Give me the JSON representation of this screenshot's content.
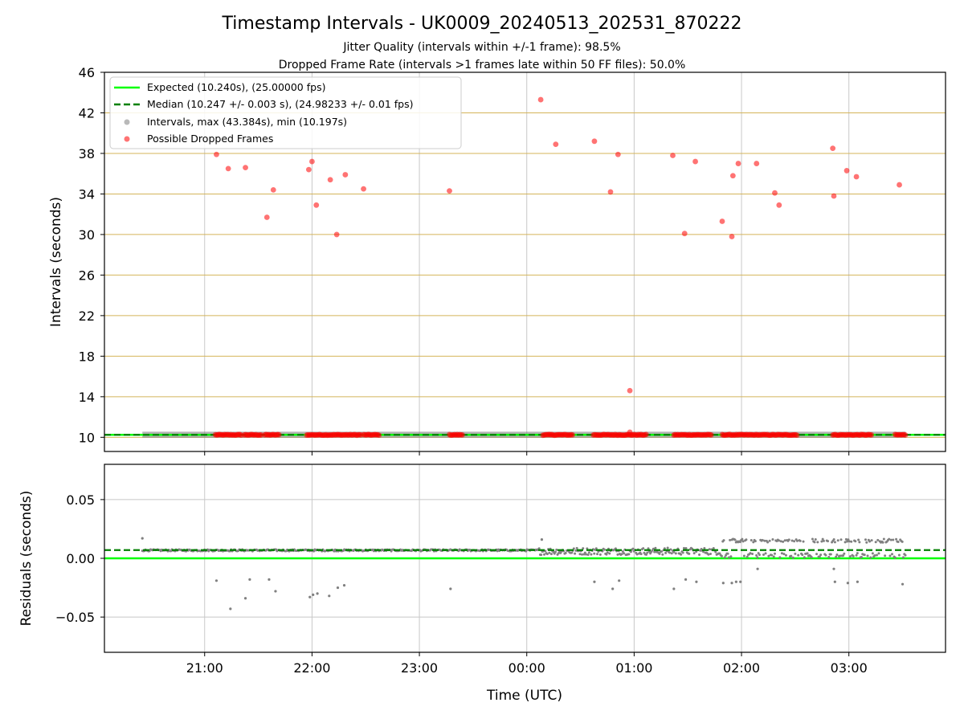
{
  "title": "Timestamp Intervals - UK0009_20240513_202531_870222",
  "subtitle_lines": [
    "Jitter Quality (intervals within +/-1 frame): 98.5%",
    "Dropped Frame Rate (intervals >1 frames late within 50 FF files): 50.0%"
  ],
  "colors": {
    "expected": "#00ff00",
    "median": "#008000",
    "intervals": "#808080",
    "dropped": "#ff0000",
    "hgrid_top": "#d4b45a",
    "grid": "#c8c8c8"
  },
  "chart_data": [
    {
      "type": "scatter",
      "panel": "intervals",
      "ylabel": "Intervals (seconds)",
      "ylim": [
        8.6,
        46
      ],
      "yticks": [
        10,
        14,
        18,
        22,
        26,
        30,
        34,
        38,
        42,
        46
      ],
      "ytick_labels": [
        "10",
        "14",
        "18",
        "22",
        "26",
        "30",
        "34",
        "38",
        "42",
        "46"
      ],
      "xlim_hours": [
        20.0667,
        27.9
      ],
      "xticks_hours": [
        21,
        22,
        23,
        24,
        25,
        26,
        27
      ],
      "grid": true,
      "legend_position": "top-left",
      "legend": [
        {
          "label": "Expected (10.240s), (25.00000 fps)",
          "style": "line"
        },
        {
          "label": "Median (10.247 +/- 0.003 s), (24.98233 +/- 0.01 fps)",
          "style": "dashed"
        },
        {
          "label": "Intervals, max (43.384s), min (10.197s)",
          "style": "gray-dot"
        },
        {
          "label": "Possible Dropped Frames",
          "style": "red-dot"
        }
      ],
      "expected": 10.24,
      "median": 10.247,
      "interval_range_hours": [
        20.42,
        27.53
      ],
      "dropped_frames": [
        [
          21.11,
          37.9
        ],
        [
          21.22,
          36.5
        ],
        [
          21.38,
          36.6
        ],
        [
          21.58,
          31.7
        ],
        [
          21.64,
          34.4
        ],
        [
          21.97,
          36.4
        ],
        [
          22.0,
          37.2
        ],
        [
          22.04,
          32.9
        ],
        [
          22.17,
          35.4
        ],
        [
          22.23,
          30.0
        ],
        [
          22.31,
          35.9
        ],
        [
          22.48,
          34.5
        ],
        [
          23.28,
          34.3
        ],
        [
          24.13,
          43.3
        ],
        [
          24.27,
          38.9
        ],
        [
          24.63,
          39.2
        ],
        [
          24.78,
          34.2
        ],
        [
          24.85,
          37.9
        ],
        [
          24.96,
          14.6
        ],
        [
          24.96,
          10.5
        ],
        [
          25.36,
          37.8
        ],
        [
          25.47,
          30.1
        ],
        [
          25.57,
          37.2
        ],
        [
          25.82,
          31.3
        ],
        [
          25.91,
          29.8
        ],
        [
          25.92,
          35.8
        ],
        [
          25.97,
          37.0
        ],
        [
          26.14,
          37.0
        ],
        [
          26.31,
          34.1
        ],
        [
          26.35,
          32.9
        ],
        [
          26.85,
          38.5
        ],
        [
          26.86,
          33.8
        ],
        [
          26.98,
          36.3
        ],
        [
          27.07,
          35.7
        ],
        [
          27.47,
          34.9
        ]
      ],
      "dropped_baseline_segments": [
        [
          21.1,
          21.35
        ],
        [
          21.37,
          21.53
        ],
        [
          21.56,
          21.7
        ],
        [
          21.95,
          22.46
        ],
        [
          22.48,
          22.63
        ],
        [
          23.28,
          23.41
        ],
        [
          24.15,
          24.43
        ],
        [
          24.62,
          25.12
        ],
        [
          25.37,
          25.72
        ],
        [
          25.82,
          26.52
        ],
        [
          26.85,
          27.22
        ],
        [
          27.43,
          27.53
        ]
      ]
    },
    {
      "type": "scatter",
      "panel": "residuals",
      "ylabel": "Residuals (seconds)",
      "xlabel": "Time (UTC)",
      "ylim": [
        -0.08,
        0.08
      ],
      "yticks": [
        -0.05,
        0.0,
        0.05
      ],
      "ytick_labels": [
        "−0.05",
        "0.00",
        "0.05"
      ],
      "xlim_hours": [
        20.0667,
        27.9
      ],
      "xticks_hours": [
        21,
        22,
        23,
        24,
        25,
        26,
        27
      ],
      "xtick_labels": [
        "21:00",
        "22:00",
        "23:00",
        "00:00",
        "01:00",
        "02:00",
        "03:00"
      ],
      "grid": true,
      "expected": 0.0,
      "median": 0.007,
      "residual_outliers": [
        [
          20.42,
          0.017
        ],
        [
          21.11,
          -0.019
        ],
        [
          21.24,
          -0.043
        ],
        [
          21.38,
          -0.034
        ],
        [
          21.42,
          -0.018
        ],
        [
          21.6,
          -0.018
        ],
        [
          21.66,
          -0.028
        ],
        [
          21.98,
          -0.033
        ],
        [
          22.01,
          -0.031
        ],
        [
          22.05,
          -0.03
        ],
        [
          22.16,
          -0.032
        ],
        [
          22.24,
          -0.025
        ],
        [
          22.3,
          -0.023
        ],
        [
          23.29,
          -0.026
        ],
        [
          24.14,
          0.016
        ],
        [
          24.63,
          -0.02
        ],
        [
          24.8,
          -0.026
        ],
        [
          24.86,
          -0.019
        ],
        [
          25.37,
          -0.026
        ],
        [
          25.48,
          -0.018
        ],
        [
          25.58,
          -0.02
        ],
        [
          25.83,
          -0.021
        ],
        [
          25.91,
          -0.021
        ],
        [
          25.95,
          -0.02
        ],
        [
          25.99,
          -0.02
        ],
        [
          26.15,
          -0.009
        ],
        [
          26.86,
          -0.009
        ],
        [
          26.87,
          -0.02
        ],
        [
          26.99,
          -0.021
        ],
        [
          27.08,
          -0.02
        ],
        [
          27.5,
          -0.022
        ]
      ]
    }
  ]
}
